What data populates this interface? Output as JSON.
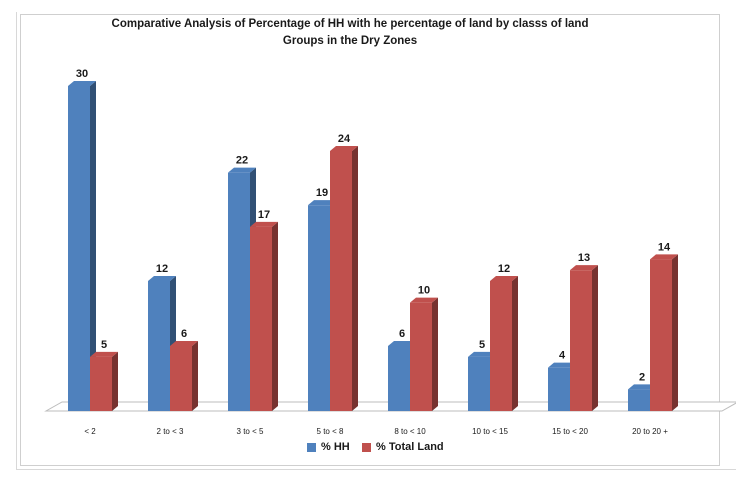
{
  "chart_data": {
    "type": "bar",
    "title": "Comparative Analysis of Percentage of  HH  with he percentage  of  land by classs of land  Groups  in the Dry Zones",
    "categories": [
      "< 2",
      "2 to < 3",
      "3 to < 5",
      "5 to < 8",
      "8 to < 10",
      "10 to < 15",
      "15 to < 20",
      "20 to 20 +"
    ],
    "series": [
      {
        "name": "% HH",
        "values": [
          30,
          12,
          22,
          19,
          6,
          5,
          4,
          2
        ],
        "color": "#4f81bd"
      },
      {
        "name": "% Total Land",
        "values": [
          5,
          6,
          17,
          24,
          10,
          12,
          13,
          14
        ],
        "color": "#c0504d"
      }
    ],
    "ylim": [
      0,
      30
    ],
    "grid": false,
    "legend_position": "bottom",
    "style": "3d-columns"
  }
}
